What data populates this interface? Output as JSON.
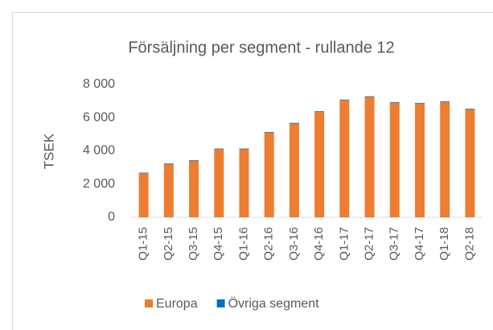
{
  "chart_data": {
    "type": "stacked_bar",
    "title": "Försäljning per segment - rullande 12",
    "ylabel": "TSEK",
    "categories": [
      "Q1-15",
      "Q2-15",
      "Q3-15",
      "Q4-15",
      "Q1-16",
      "Q2-16",
      "Q3-16",
      "Q4-16",
      "Q1-17",
      "Q2-17",
      "Q3-17",
      "Q4-17",
      "Q1-18",
      "Q2-18"
    ],
    "series": [
      {
        "name": "Europa",
        "color": "#ed7d31",
        "values": [
          2650,
          3200,
          3400,
          4100,
          4100,
          5100,
          5650,
          6350,
          7050,
          7250,
          6900,
          6850,
          6950,
          6500
        ]
      },
      {
        "name": "Övriga segment",
        "color": "#0070c0",
        "values": [
          40,
          40,
          40,
          40,
          40,
          40,
          40,
          40,
          40,
          40,
          40,
          40,
          40,
          40
        ]
      }
    ],
    "ylim": [
      0,
      8000
    ],
    "yticks": [
      0,
      {
        "value": 2000,
        "label": "2 000"
      },
      {
        "value": 4000,
        "label": "4 000"
      },
      {
        "value": 6000,
        "label": "6 000"
      },
      {
        "value": 8000,
        "label": "8 000"
      }
    ],
    "legend": "bottom"
  }
}
